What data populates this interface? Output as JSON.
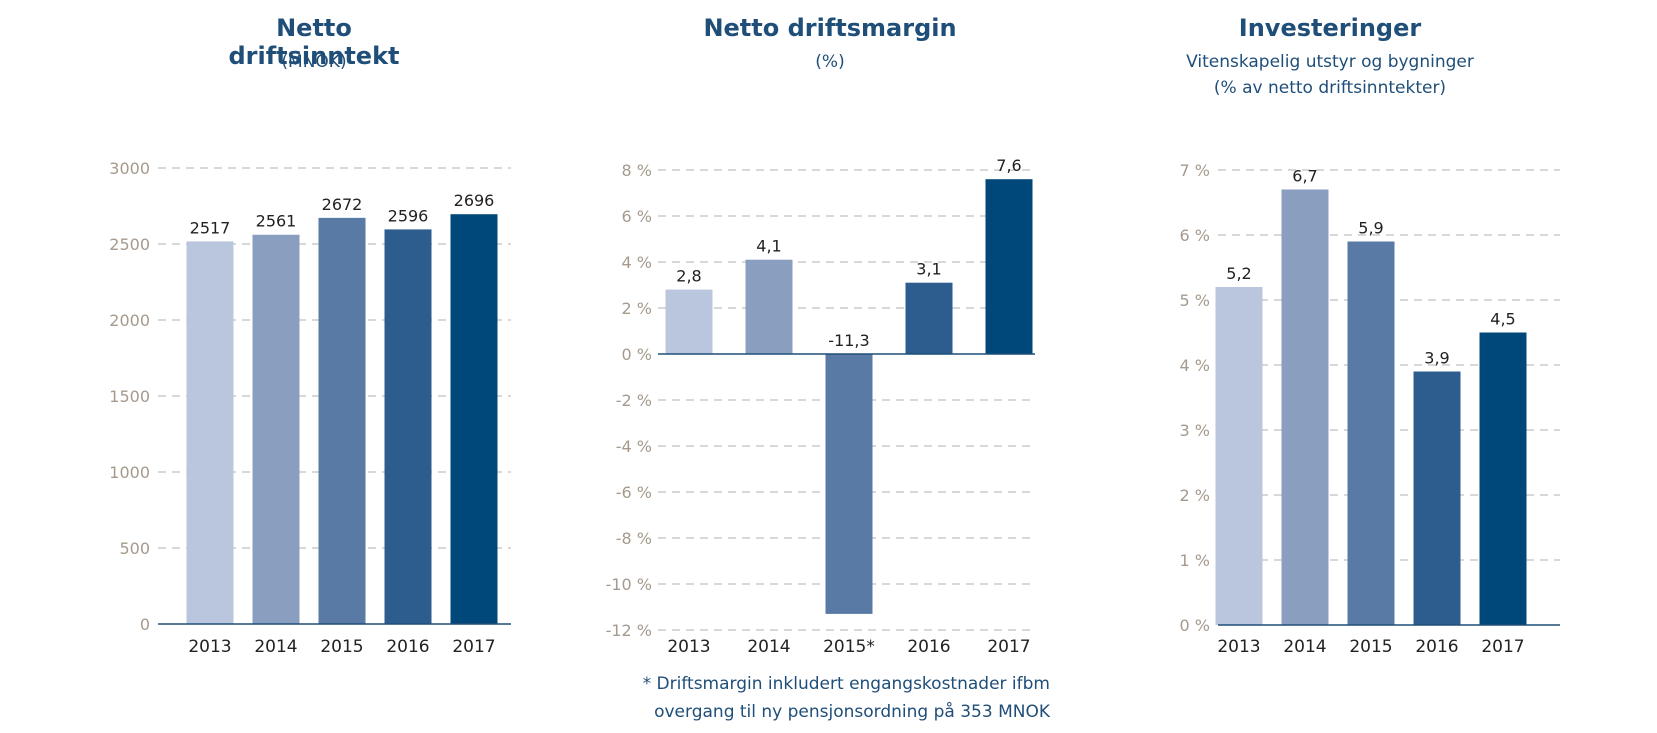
{
  "charts": [
    {
      "title": "Netto driftsinntekt",
      "subtitle_lines": [
        "(MNOK)"
      ],
      "chart_data": {
        "type": "bar",
        "categories": [
          "2013",
          "2014",
          "2015",
          "2016",
          "2017"
        ],
        "values": [
          2517,
          2561,
          2672,
          2596,
          2696
        ],
        "value_labels": [
          "2517",
          "2561",
          "2672",
          "2596",
          "2696"
        ],
        "ylim": [
          0,
          3000
        ],
        "yticks": [
          0,
          500,
          1000,
          1500,
          2000,
          2500,
          3000
        ],
        "ytick_labels": [
          "0",
          "500",
          "1000",
          "1500",
          "2000",
          "2500",
          "3000"
        ],
        "grid": true
      }
    },
    {
      "title": "Netto driftsmargin",
      "subtitle_lines": [
        "(%)"
      ],
      "chart_data": {
        "type": "bar",
        "categories": [
          "2013",
          "2014",
          "2015*",
          "2016",
          "2017"
        ],
        "values": [
          2.8,
          4.1,
          -11.3,
          3.1,
          7.6
        ],
        "value_labels": [
          "2,8",
          "4,1",
          "-11,3",
          "3,1",
          "7,6"
        ],
        "ylim": [
          -12,
          8
        ],
        "yticks": [
          -12,
          -10,
          -8,
          -6,
          -4,
          -2,
          0,
          2,
          4,
          6,
          8
        ],
        "ytick_labels": [
          "-12 %",
          "-10 %",
          "-8 %",
          "-6 %",
          "-4 %",
          "-2 %",
          "0 %",
          "2 %",
          "4 %",
          "6 %",
          "8 %"
        ],
        "grid": true
      }
    },
    {
      "title": "Investeringer",
      "subtitle_lines": [
        "Vitenskapelig utstyr og bygninger",
        "(% av netto driftsinntekter)"
      ],
      "chart_data": {
        "type": "bar",
        "categories": [
          "2013",
          "2014",
          "2015",
          "2016",
          "2017"
        ],
        "values": [
          5.2,
          6.7,
          5.9,
          3.9,
          4.5
        ],
        "value_labels": [
          "5,2",
          "6,7",
          "5,9",
          "3,9",
          "4,5"
        ],
        "ylim": [
          0,
          7
        ],
        "yticks": [
          0,
          1,
          2,
          3,
          4,
          5,
          6,
          7
        ],
        "ytick_labels": [
          "0 %",
          "1 %",
          "2 %",
          "3 %",
          "4 %",
          "5 %",
          "6 %",
          "7 %"
        ],
        "grid": true
      }
    }
  ],
  "footnote": {
    "line1": "* Driftsmargin inkludert engangskostnader ifbm",
    "line2": "overgang til ny pensjonsordning på 353 MNOK"
  },
  "colors": {
    "bars": [
      "#b9c6de",
      "#8a9ebf",
      "#5a7aa6",
      "#2d5d8e",
      "#00487a"
    ],
    "axis": "#1f4e79",
    "grid": "#b0b0b0",
    "tick_text": "#a59a8d"
  }
}
